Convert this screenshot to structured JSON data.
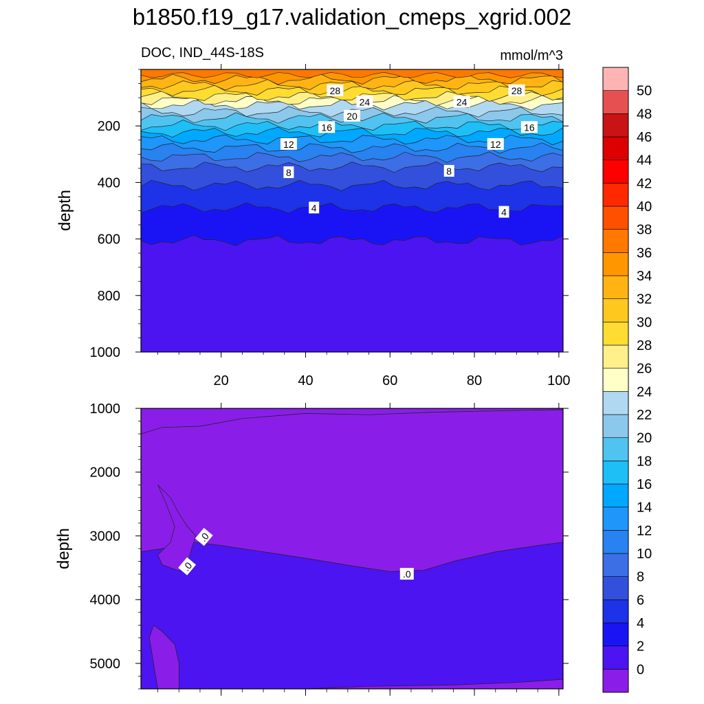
{
  "title": "b1850.f19_g17.validation_cmeps_xgrid.002",
  "subtitle_left": "DOC, IND_44S-18S",
  "subtitle_right": "mmol/m^3",
  "chart_data": [
    {
      "type": "heatmap",
      "panel": "upper",
      "xlabel": "",
      "ylabel": "depth",
      "xlim": [
        1,
        101
      ],
      "ylim": [
        1000,
        0
      ],
      "xticks": [
        20,
        40,
        60,
        80,
        100
      ],
      "yticks": [
        200,
        400,
        600,
        800,
        1000
      ],
      "contour_levels": [
        0,
        2,
        4,
        6,
        8,
        10,
        12,
        14,
        16,
        18,
        20,
        22,
        24,
        26,
        28,
        30,
        32,
        34
      ],
      "contour_depths": [
        {
          "level": 34,
          "depth": 35
        },
        {
          "level": 32,
          "depth": 55
        },
        {
          "level": 30,
          "depth": 75
        },
        {
          "level": 28,
          "depth": 95
        },
        {
          "level": 26,
          "depth": 110
        },
        {
          "level": 24,
          "depth": 125
        },
        {
          "level": 22,
          "depth": 150
        },
        {
          "level": 20,
          "depth": 172
        },
        {
          "level": 18,
          "depth": 198
        },
        {
          "level": 16,
          "depth": 222
        },
        {
          "level": 14,
          "depth": 248
        },
        {
          "level": 12,
          "depth": 278
        },
        {
          "level": 10,
          "depth": 310
        },
        {
          "level": 8,
          "depth": 345
        },
        {
          "level": 6,
          "depth": 410
        },
        {
          "level": 4,
          "depth": 490
        },
        {
          "level": 2,
          "depth": 605
        }
      ],
      "labels": [
        {
          "text": "28",
          "x": 47,
          "y": 75
        },
        {
          "text": "24",
          "x": 54,
          "y": 115
        },
        {
          "text": "24",
          "x": 77,
          "y": 115
        },
        {
          "text": "28",
          "x": 90,
          "y": 75
        },
        {
          "text": "20",
          "x": 51,
          "y": 165
        },
        {
          "text": "16",
          "x": 45,
          "y": 205
        },
        {
          "text": "16",
          "x": 93,
          "y": 205
        },
        {
          "text": "12",
          "x": 36,
          "y": 265
        },
        {
          "text": "12",
          "x": 85,
          "y": 265
        },
        {
          "text": "8",
          "x": 36,
          "y": 365
        },
        {
          "text": "8",
          "x": 74,
          "y": 360
        },
        {
          "text": "4",
          "x": 42,
          "y": 490
        },
        {
          "text": "4",
          "x": 87,
          "y": 505
        }
      ]
    },
    {
      "type": "heatmap",
      "panel": "lower",
      "xlabel": "",
      "ylabel": "depth",
      "xlim": [
        1,
        101
      ],
      "ylim": [
        5400,
        1000
      ],
      "xticks": [
        20,
        40,
        60,
        80,
        100
      ],
      "yticks": [
        1000,
        2000,
        3000,
        4000,
        5000
      ],
      "contour_levels": [
        0
      ],
      "labels": [
        {
          "text": ".0",
          "x": 16,
          "y": 3020
        },
        {
          "text": ".0",
          "x": 12,
          "y": 3480
        },
        {
          "text": ".0",
          "x": 64,
          "y": 3600
        }
      ]
    }
  ],
  "colorbar": {
    "levels": [
      "0",
      "2",
      "4",
      "6",
      "8",
      "10",
      "12",
      "14",
      "16",
      "18",
      "20",
      "22",
      "24",
      "26",
      "28",
      "30",
      "32",
      "34",
      "36",
      "38",
      "40",
      "42",
      "44",
      "46",
      "48",
      "50"
    ],
    "colors": [
      "#8a1ee8",
      "#4b14f0",
      "#1a14f5",
      "#1e32e8",
      "#3250dc",
      "#3c6ee6",
      "#2882f0",
      "#1e96fa",
      "#00a8ff",
      "#1ebef7",
      "#50c3f0",
      "#8cc8ec",
      "#b0d8f0",
      "#ffffc8",
      "#fff08c",
      "#ffdc32",
      "#ffc81e",
      "#ffb414",
      "#ff9600",
      "#ff7800",
      "#ff5000",
      "#ff2800",
      "#ff0000",
      "#dc0000",
      "#c81414",
      "#e65050",
      "#ffb4b4"
    ]
  }
}
